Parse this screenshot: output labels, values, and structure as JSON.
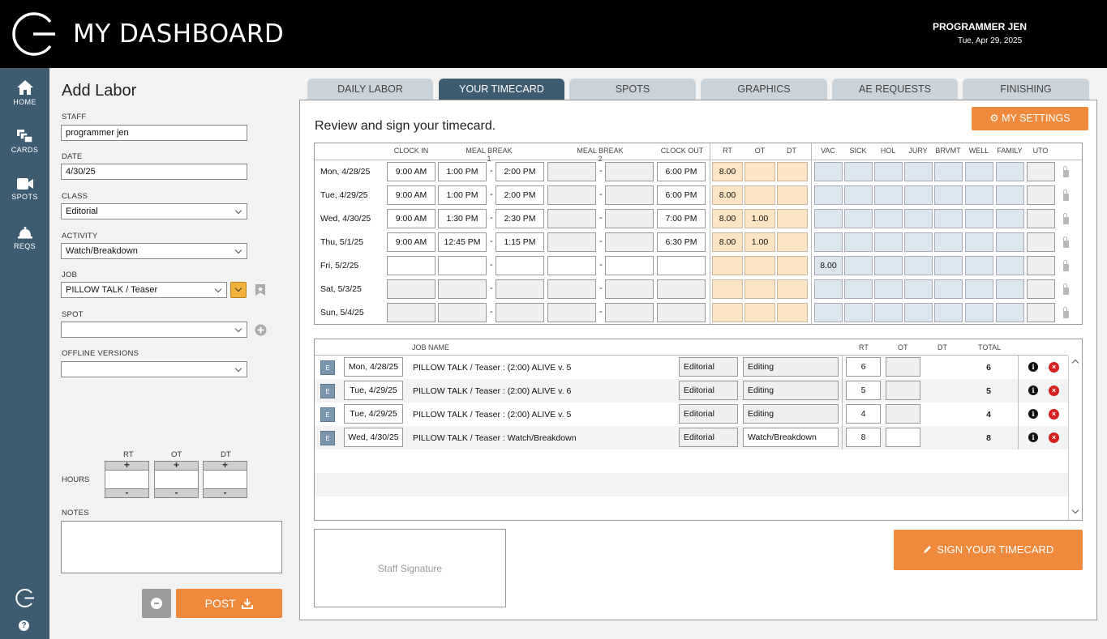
{
  "header": {
    "title": "MY DASHBOARD",
    "user_name": "PROGRAMMER JEN",
    "date": "Tue, Apr 29, 2025"
  },
  "sidebar": {
    "items": [
      {
        "label": "HOME",
        "icon": "home-icon"
      },
      {
        "label": "CARDS",
        "icon": "cards-icon"
      },
      {
        "label": "SPOTS",
        "icon": "video-camera-icon"
      },
      {
        "label": "REQS",
        "icon": "bell-icon"
      }
    ],
    "help": "?"
  },
  "form": {
    "title": "Add Labor",
    "staff_label": "STAFF",
    "staff_value": "programmer jen",
    "date_label": "DATE",
    "date_value": "4/30/25",
    "class_label": "CLASS",
    "class_value": "Editorial",
    "activity_label": "ACTIVITY",
    "activity_value": "Watch/Breakdown",
    "job_label": "JOB",
    "job_value": "PILLOW TALK / Teaser",
    "spot_label": "SPOT",
    "spot_value": "",
    "offline_label": "OFFLINE VERSIONS",
    "offline_value": "",
    "hours_label": "HOURS",
    "rt_label": "RT",
    "ot_label": "OT",
    "dt_label": "DT",
    "plus": "+",
    "minus": "-",
    "notes_label": "NOTES",
    "post_label": "POST"
  },
  "tabs": [
    {
      "label": "DAILY LABOR",
      "active": false
    },
    {
      "label": "YOUR TIMECARD",
      "active": true
    },
    {
      "label": "SPOTS",
      "active": false
    },
    {
      "label": "GRAPHICS",
      "active": false
    },
    {
      "label": "AE REQUESTS",
      "active": false
    },
    {
      "label": "FINISHING",
      "active": false
    }
  ],
  "timecard": {
    "title": "Review and sign your timecard.",
    "settings_label": "MY SETTINGS",
    "headers": {
      "clock_in": "CLOCK IN",
      "meal1": "MEAL BREAK 1",
      "meal2": "MEAL BREAK 2",
      "clock_out": "CLOCK OUT",
      "rt": "RT",
      "ot": "OT",
      "dt": "DT",
      "vac": "VAC",
      "sick": "SICK",
      "hol": "HOL",
      "jury": "JURY",
      "brvmt": "BRVMT",
      "well": "WELL",
      "family": "FAMILY",
      "uto": "UTO"
    },
    "dash": "-",
    "rows": [
      {
        "day": "Mon, 4/28/25",
        "clock_in": "9:00 AM",
        "m1_start": "1:00 PM",
        "m1_end": "2:00 PM",
        "m2_start": "",
        "m2_end": "",
        "clock_out": "6:00 PM",
        "rt": "8.00",
        "ot": "",
        "dt": "",
        "vac": ""
      },
      {
        "day": "Tue, 4/29/25",
        "clock_in": "9:00 AM",
        "m1_start": "1:00 PM",
        "m1_end": "2:00 PM",
        "m2_start": "",
        "m2_end": "",
        "clock_out": "6:00 PM",
        "rt": "8.00",
        "ot": "",
        "dt": "",
        "vac": ""
      },
      {
        "day": "Wed, 4/30/25",
        "clock_in": "9:00 AM",
        "m1_start": "1:30 PM",
        "m1_end": "2:30 PM",
        "m2_start": "",
        "m2_end": "",
        "clock_out": "7:00 PM",
        "rt": "8.00",
        "ot": "1.00",
        "dt": "",
        "vac": ""
      },
      {
        "day": "Thu, 5/1/25",
        "clock_in": "9:00 AM",
        "m1_start": "12:45 PM",
        "m1_end": "1:15 PM",
        "m2_start": "",
        "m2_end": "",
        "clock_out": "6:30 PM",
        "rt": "8.00",
        "ot": "1.00",
        "dt": "",
        "vac": ""
      },
      {
        "day": "Fri, 5/2/25",
        "clock_in": "",
        "m1_start": "",
        "m1_end": "",
        "m2_start": "",
        "m2_end": "",
        "clock_out": "",
        "rt": "",
        "ot": "",
        "dt": "",
        "vac": "8.00"
      },
      {
        "day": "Sat, 5/3/25",
        "clock_in": "",
        "m1_start": "",
        "m1_end": "",
        "m2_start": "",
        "m2_end": "",
        "clock_out": "",
        "rt": "",
        "ot": "",
        "dt": "",
        "vac": ""
      },
      {
        "day": "Sun, 5/4/25",
        "clock_in": "",
        "m1_start": "",
        "m1_end": "",
        "m2_start": "",
        "m2_end": "",
        "clock_out": "",
        "rt": "",
        "ot": "",
        "dt": "",
        "vac": ""
      }
    ]
  },
  "jobs": {
    "headers": {
      "job_name": "JOB NAME",
      "rt": "RT",
      "ot": "OT",
      "dt": "DT",
      "total": "TOTAL"
    },
    "rows": [
      {
        "badge": "E",
        "date": "Mon, 4/28/25",
        "name": "PILLOW TALK / Teaser :  (2:00) ALIVE v. 5",
        "class": "Editorial",
        "activity": "Editing",
        "rt": "6",
        "ot": "",
        "total": "6"
      },
      {
        "badge": "E",
        "date": "Tue, 4/29/25",
        "name": "PILLOW TALK / Teaser :  (2:00) ALIVE v. 6",
        "class": "Editorial",
        "activity": "Editing",
        "rt": "5",
        "ot": "",
        "total": "5"
      },
      {
        "badge": "E",
        "date": "Tue, 4/29/25",
        "name": "PILLOW TALK / Teaser :  (2:00) ALIVE v. 5",
        "class": "Editorial",
        "activity": "Editing",
        "rt": "4",
        "ot": "",
        "total": "4"
      },
      {
        "badge": "E",
        "date": "Wed, 4/30/25",
        "name": "PILLOW TALK / Teaser : Watch/Breakdown",
        "class": "Editorial",
        "activity": "Watch/Breakdown",
        "rt": "8",
        "ot": "",
        "total": "8"
      }
    ]
  },
  "signature_label": "Staff Signature",
  "sign_button_label": "SIGN YOUR TIMECARD",
  "colors": {
    "accent": "#ef8a3c",
    "sidebar": "#3f5b70",
    "header": "#000000",
    "tab": "#cbd3da"
  }
}
